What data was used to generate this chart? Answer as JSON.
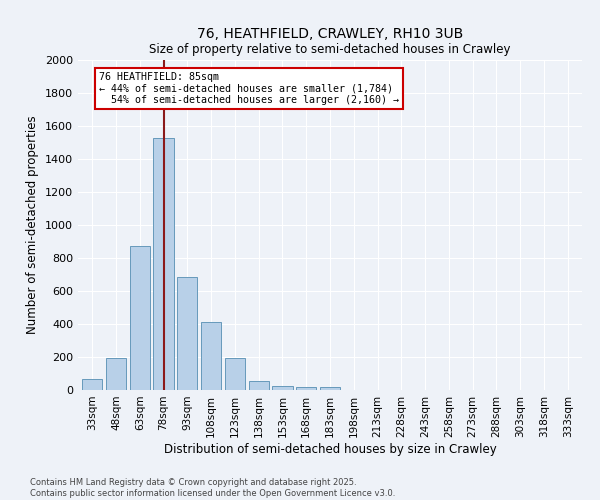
{
  "title1": "76, HEATHFIELD, CRAWLEY, RH10 3UB",
  "title2": "Size of property relative to semi-detached houses in Crawley",
  "xlabel": "Distribution of semi-detached houses by size in Crawley",
  "ylabel": "Number of semi-detached properties",
  "categories": [
    "33sqm",
    "48sqm",
    "63sqm",
    "78sqm",
    "93sqm",
    "108sqm",
    "123sqm",
    "138sqm",
    "153sqm",
    "168sqm",
    "183sqm",
    "198sqm",
    "213sqm",
    "228sqm",
    "243sqm",
    "258sqm",
    "273sqm",
    "288sqm",
    "303sqm",
    "318sqm",
    "333sqm"
  ],
  "values": [
    65,
    195,
    875,
    1530,
    685,
    415,
    195,
    55,
    25,
    20,
    20,
    0,
    0,
    0,
    0,
    0,
    0,
    0,
    0,
    0,
    0
  ],
  "bar_color": "#b8d0e8",
  "bar_edge_color": "#6699bb",
  "bar_width": 0.85,
  "property_label": "76 HEATHFIELD: 85sqm",
  "pct_smaller": 44,
  "n_smaller": 1784,
  "pct_larger": 54,
  "n_larger": 2160,
  "vline_x_index": 3,
  "vline_color": "#8b1a1a",
  "annotation_box_color": "#ffffff",
  "annotation_box_edge": "#cc0000",
  "ylim": [
    0,
    2000
  ],
  "yticks": [
    0,
    200,
    400,
    600,
    800,
    1000,
    1200,
    1400,
    1600,
    1800,
    2000
  ],
  "bg_color": "#eef2f8",
  "grid_color": "#ffffff",
  "footnote1": "Contains HM Land Registry data © Crown copyright and database right 2025.",
  "footnote2": "Contains public sector information licensed under the Open Government Licence v3.0."
}
